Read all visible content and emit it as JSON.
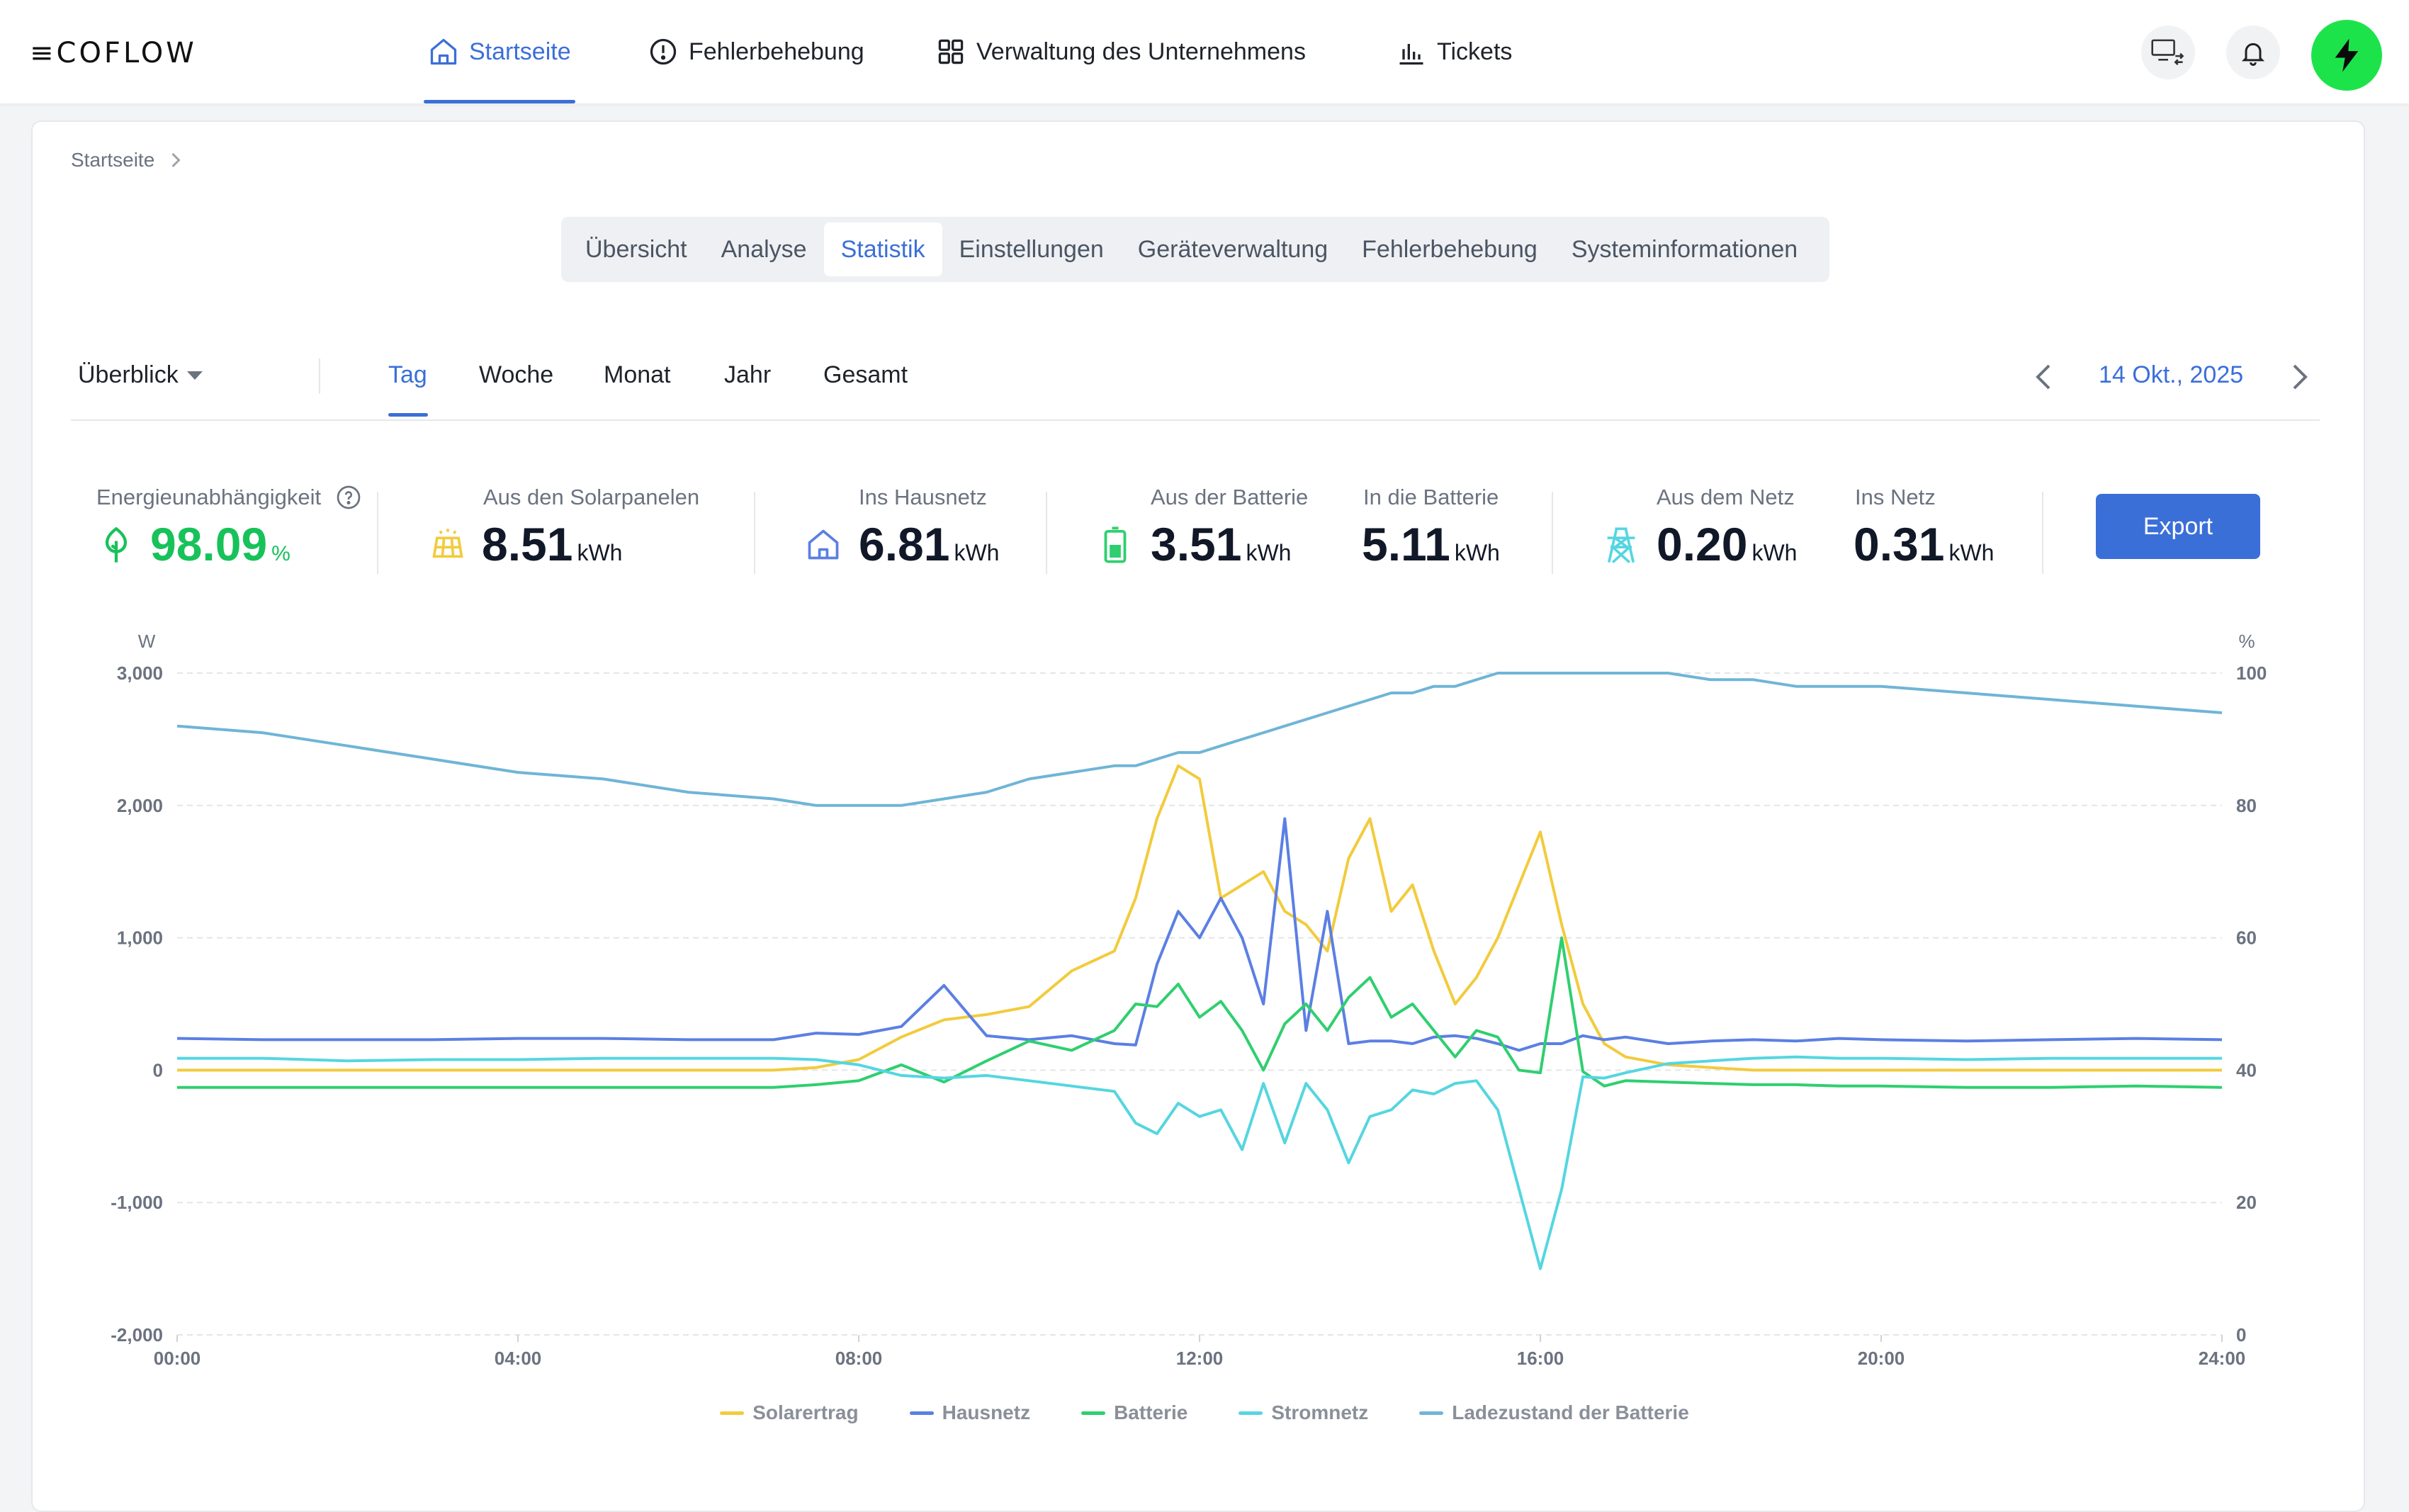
{
  "header": {
    "logo": "≡COFLOW",
    "nav": [
      {
        "label": "Startseite",
        "active": true
      },
      {
        "label": "Fehlerbehebung",
        "active": false
      },
      {
        "label": "Verwaltung des Unternehmens",
        "active": false
      },
      {
        "label": "Tickets",
        "active": false
      }
    ]
  },
  "breadcrumb": {
    "label": "Startseite"
  },
  "tabs": [
    "Übersicht",
    "Analyse",
    "Statistik",
    "Einstellungen",
    "Geräteverwaltung",
    "Fehlerbehebung",
    "Systeminformationen"
  ],
  "active_tab": "Statistik",
  "view_select": {
    "value": "Überblick"
  },
  "periods": [
    "Tag",
    "Woche",
    "Monat",
    "Jahr",
    "Gesamt"
  ],
  "active_period": "Tag",
  "date": "14 Okt., 2025",
  "stats": {
    "independence": {
      "label": "Energieunabhängigkeit",
      "value": "98.09",
      "unit": "%"
    },
    "solar": {
      "label": "Aus den Solarpanelen",
      "value": "8.51",
      "unit": "kWh"
    },
    "home": {
      "label": "Ins Hausnetz",
      "value": "6.81",
      "unit": "kWh"
    },
    "from_battery": {
      "label": "Aus der Batterie",
      "value": "3.51",
      "unit": "kWh"
    },
    "to_battery": {
      "label": "In die Batterie",
      "value": "5.11",
      "unit": "kWh"
    },
    "from_grid": {
      "label": "Aus dem Netz",
      "value": "0.20",
      "unit": "kWh"
    },
    "to_grid": {
      "label": "Ins Netz",
      "value": "0.31",
      "unit": "kWh"
    }
  },
  "export_label": "Export",
  "colors": {
    "accent": "#3b6fd8",
    "solar": "#f2cb3d",
    "home": "#5b7fe3",
    "battery": "#2fcf6f",
    "grid": "#55d6e0",
    "soc": "#6fb5d6",
    "power_button": "#1de34b"
  },
  "chart_data": {
    "type": "line",
    "ylabel": "W",
    "y2label": "%",
    "ylim": [
      -2000,
      3000
    ],
    "y_ticks": [
      "3,000",
      "2,000",
      "1,000",
      "0",
      "-1,000",
      "-2,000"
    ],
    "y2lim": [
      0,
      100
    ],
    "y2_ticks": [
      "100",
      "80",
      "60",
      "40",
      "20",
      "0"
    ],
    "x_ticks": [
      "00:00",
      "04:00",
      "08:00",
      "12:00",
      "16:00",
      "20:00",
      "24:00"
    ],
    "grid": true,
    "legend_position": "bottom",
    "x": [
      0,
      1,
      2,
      3,
      4,
      5,
      6,
      7,
      7.5,
      8,
      8.5,
      9,
      9.5,
      10,
      10.5,
      11,
      11.25,
      11.5,
      11.75,
      12,
      12.25,
      12.5,
      12.75,
      13,
      13.25,
      13.5,
      13.75,
      14,
      14.25,
      14.5,
      14.75,
      15,
      15.25,
      15.5,
      15.75,
      16,
      16.25,
      16.5,
      16.75,
      17,
      17.5,
      18,
      18.5,
      19,
      19.5,
      20,
      21,
      22,
      23,
      24
    ],
    "series": [
      {
        "name": "Solarertrag",
        "axis": "left",
        "values": [
          0,
          0,
          0,
          0,
          0,
          0,
          0,
          0,
          20,
          80,
          250,
          380,
          420,
          480,
          750,
          900,
          1300,
          1900,
          2300,
          2200,
          1300,
          1400,
          1500,
          1200,
          1100,
          900,
          1600,
          1900,
          1200,
          1400,
          900,
          500,
          700,
          1000,
          1400,
          1800,
          1100,
          500,
          200,
          100,
          40,
          20,
          0,
          0,
          0,
          0,
          0,
          0,
          0,
          0
        ]
      },
      {
        "name": "Hausnetz",
        "axis": "left",
        "values": [
          240,
          230,
          230,
          230,
          240,
          240,
          230,
          230,
          280,
          270,
          330,
          640,
          260,
          230,
          260,
          200,
          190,
          800,
          1200,
          1000,
          1300,
          1000,
          500,
          1900,
          300,
          1200,
          200,
          220,
          220,
          200,
          250,
          260,
          240,
          200,
          150,
          200,
          200,
          260,
          230,
          250,
          200,
          220,
          230,
          220,
          240,
          230,
          220,
          230,
          240,
          230
        ]
      },
      {
        "name": "Batterie",
        "axis": "left",
        "values": [
          -130,
          -130,
          -130,
          -130,
          -130,
          -130,
          -130,
          -130,
          -110,
          -80,
          40,
          -90,
          70,
          220,
          150,
          300,
          500,
          480,
          650,
          400,
          520,
          300,
          0,
          350,
          500,
          300,
          550,
          700,
          400,
          500,
          300,
          100,
          300,
          250,
          0,
          -20,
          1000,
          -10,
          -120,
          -80,
          -90,
          -100,
          -110,
          -110,
          -120,
          -120,
          -130,
          -130,
          -120,
          -130
        ]
      },
      {
        "name": "Stromnetz",
        "axis": "left",
        "values": [
          90,
          90,
          70,
          80,
          80,
          90,
          90,
          90,
          80,
          40,
          -40,
          -60,
          -40,
          -80,
          -120,
          -160,
          -400,
          -480,
          -250,
          -350,
          -300,
          -600,
          -100,
          -550,
          -100,
          -300,
          -700,
          -350,
          -300,
          -150,
          -180,
          -100,
          -80,
          -300,
          -900,
          -1500,
          -900,
          -50,
          -60,
          -20,
          50,
          70,
          90,
          100,
          90,
          90,
          80,
          90,
          90,
          90
        ]
      },
      {
        "name": "Ladezustand der Batterie",
        "axis": "right",
        "values": [
          92,
          91,
          89,
          87,
          85,
          84,
          82,
          81,
          80,
          80,
          80,
          81,
          82,
          84,
          85,
          86,
          86,
          87,
          88,
          88,
          89,
          90,
          91,
          92,
          93,
          94,
          95,
          96,
          97,
          97,
          98,
          98,
          99,
          100,
          100,
          100,
          100,
          100,
          100,
          100,
          100,
          99,
          99,
          98,
          98,
          98,
          97,
          96,
          95,
          94
        ]
      }
    ]
  }
}
